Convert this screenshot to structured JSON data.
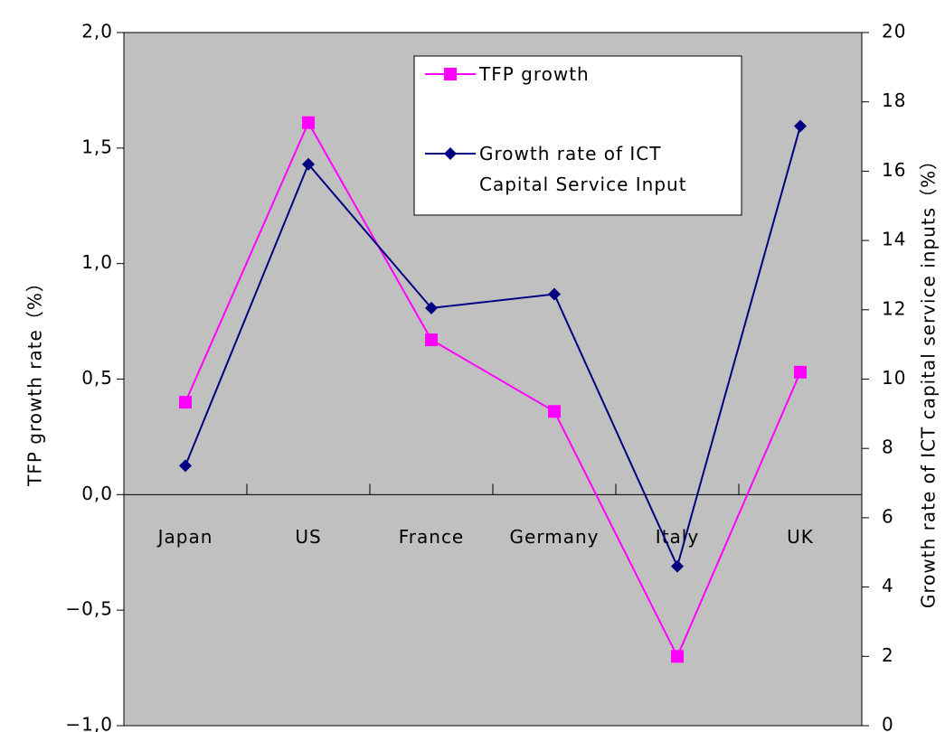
{
  "chart_data": {
    "type": "line",
    "categories": [
      "Japan",
      "US",
      "France",
      "Germany",
      "Italy",
      "UK"
    ],
    "series": [
      {
        "name": "TFP growth",
        "color": "#ff00ff",
        "marker": "square",
        "values": [
          0.4,
          1.61,
          0.67,
          0.36,
          -0.7,
          0.53
        ]
      },
      {
        "name": "Growth rate of ICT Capital Service Input",
        "color": "#000080",
        "marker": "diamond",
        "axis": "y2",
        "values": [
          7.5,
          16.2,
          12.05,
          12.45,
          4.6,
          17.3
        ]
      }
    ],
    "ylabel": "TFP growth rate（%）",
    "y2label": "Growth rate of ICT capital service inputs（%）",
    "ylim": [
      -1.0,
      2.0
    ],
    "yticks": [
      {
        "value": -1.0,
        "label": "−1,0"
      },
      {
        "value": -0.5,
        "label": "−0,5"
      },
      {
        "value": 0.0,
        "label": "0,0"
      },
      {
        "value": 0.5,
        "label": "0,5"
      },
      {
        "value": 1.0,
        "label": "1,0"
      },
      {
        "value": 1.5,
        "label": "1,5"
      },
      {
        "value": 2.0,
        "label": "2,0"
      }
    ],
    "y2lim": [
      0,
      20
    ],
    "y2ticks": [
      0,
      2,
      4,
      6,
      8,
      10,
      12,
      14,
      16,
      18,
      20
    ],
    "legend": "upper right",
    "background": "#c0c0c0"
  }
}
